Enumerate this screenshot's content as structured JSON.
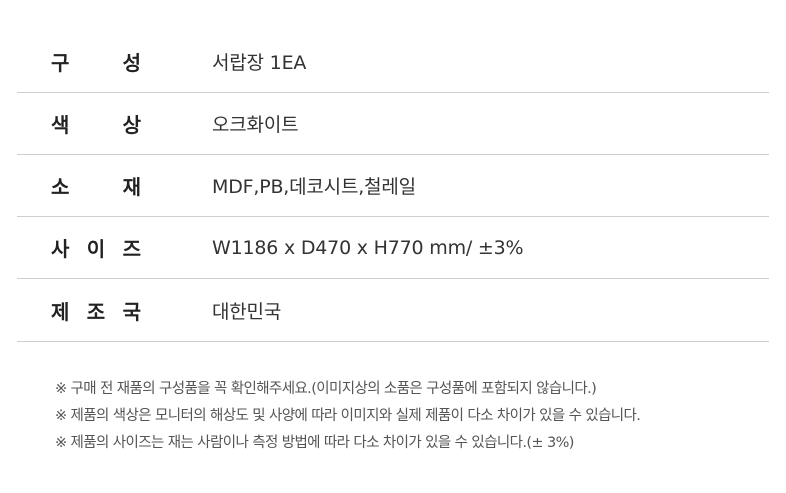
{
  "spec_rows": [
    {
      "label_chars": [
        "구",
        "성"
      ],
      "value": "서랍장 1EA"
    },
    {
      "label_chars": [
        "색",
        "상"
      ],
      "value": "오크화이트"
    },
    {
      "label_chars": [
        "소",
        "재"
      ],
      "value": "MDF,PB,데코시트,철레일"
    },
    {
      "label_chars": [
        "사",
        "이",
        "즈"
      ],
      "value": "W1186 x D470 x H770 mm/ ±3%"
    },
    {
      "label_chars": [
        "제",
        "조",
        "국"
      ],
      "value": "대한민국"
    }
  ],
  "notes": [
    "※ 구매 전 재품의 구성품을 꼭 확인해주세요.(이미지상의 소품은 구성품에 포함되지 않습니다.)",
    "※ 제품의 색상은 모니터의 해상도 및 사양에 따라 이미지와 실제 제품이 다소 차이가 있을 수 있습니다.",
    "※ 제품의 사이즈는 재는 사람이나 측정 방법에 따라 다소 차이가 있을 수 있습니다.(± 3%)"
  ]
}
